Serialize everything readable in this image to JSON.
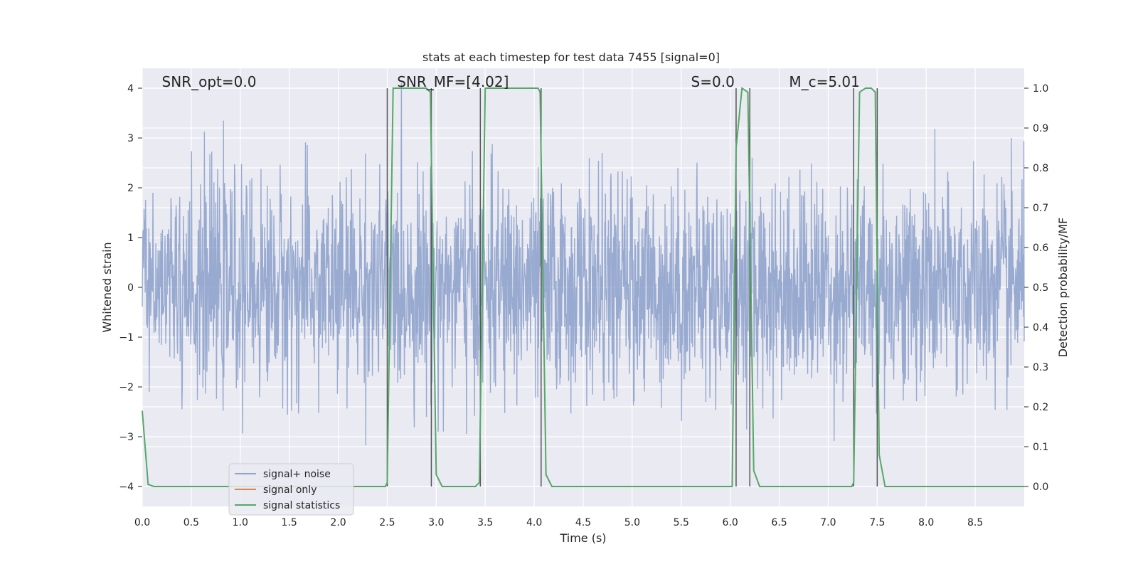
{
  "chart_data": {
    "type": "line",
    "title": "stats at each timestep for test data 7455 [signal=0]",
    "xlabel": "Time (s)",
    "ylabel": "Whitened strain",
    "y2label": "Detection probability/MF",
    "xlim": [
      0.0,
      9.0
    ],
    "ylim": [
      -4.4,
      4.4
    ],
    "y2lim": [
      -0.05,
      1.05
    ],
    "xticks": [
      "0.0",
      "0.5",
      "1.0",
      "1.5",
      "2.0",
      "2.5",
      "3.0",
      "3.5",
      "4.0",
      "4.5",
      "5.0",
      "5.5",
      "6.0",
      "6.5",
      "7.0",
      "7.5",
      "8.0",
      "8.5"
    ],
    "yticks": [
      "−4",
      "−3",
      "−2",
      "−1",
      "0",
      "1",
      "2",
      "3",
      "4"
    ],
    "y2ticks": [
      "0.0",
      "0.1",
      "0.2",
      "0.3",
      "0.4",
      "0.5",
      "0.6",
      "0.7",
      "0.8",
      "0.9",
      "1.0"
    ],
    "grid": true,
    "legend_placement": "lower-left",
    "annotations": [
      {
        "text": "SNR_opt=0.0",
        "x": 0.2,
        "y": 4.1
      },
      {
        "text": "SNR_MF=[4.02]",
        "x": 2.6,
        "y": 4.1
      },
      {
        "text": "S=0.0",
        "x": 5.6,
        "y": 4.1
      },
      {
        "text": "M_c=5.01",
        "x": 6.6,
        "y": 4.1
      }
    ],
    "series": [
      {
        "name": "signal+ noise",
        "color": "#8fa3cc",
        "kind": "noise",
        "amplitude_std": 1.0
      },
      {
        "name": "signal only",
        "color": "#dd8452",
        "values": []
      },
      {
        "name": "signal statistics",
        "color": "#55a868",
        "axis": "right",
        "x": [
          0.0,
          0.06,
          0.12,
          2.48,
          2.5,
          2.56,
          2.9,
          2.94,
          3.0,
          3.06,
          3.4,
          3.44,
          3.5,
          4.04,
          4.06,
          4.12,
          4.18,
          6.02,
          6.06,
          6.12,
          6.18,
          6.24,
          6.3,
          7.24,
          7.26,
          7.32,
          7.38,
          7.44,
          7.48,
          7.52,
          7.58,
          9.0
        ],
        "values": [
          0.19,
          0.005,
          0.0,
          0.0,
          0.01,
          1.0,
          1.0,
          0.99,
          0.03,
          0.0,
          0.0,
          0.01,
          1.0,
          1.0,
          0.99,
          0.03,
          0.0,
          0.0,
          0.85,
          1.0,
          0.99,
          0.04,
          0.0,
          0.0,
          0.01,
          0.99,
          1.0,
          1.0,
          0.99,
          0.08,
          0.0,
          0.0
        ]
      }
    ],
    "vertical_markers": [
      2.5,
      2.95,
      3.45,
      4.07,
      6.06,
      6.2,
      7.26,
      7.5
    ]
  }
}
